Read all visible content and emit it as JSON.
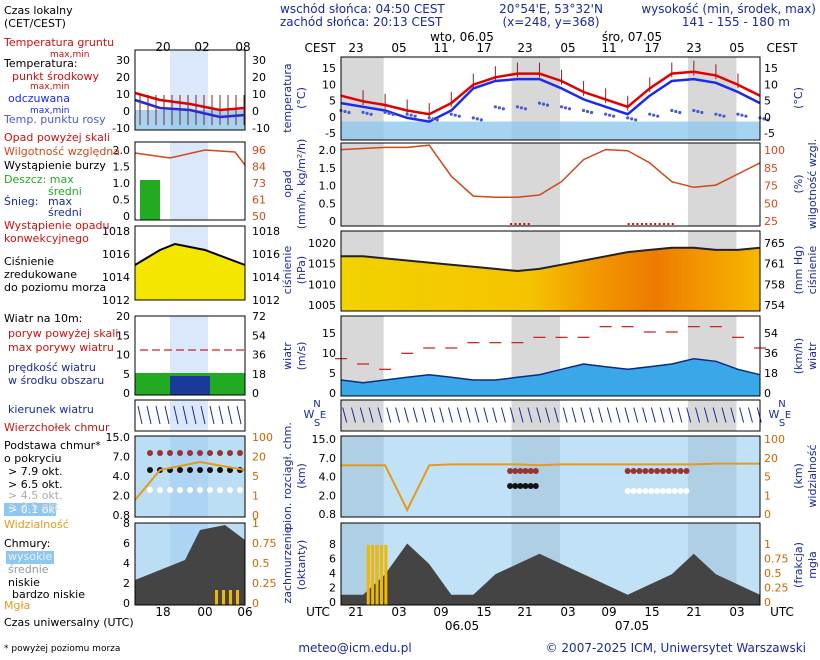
{
  "header": {
    "sunrise": "wschód słońca: 04:50 CEST",
    "sunset": "zachód słońca: 20:13 CEST",
    "coords": "20°54'E, 53°32'N",
    "grid": "(x=248, y=368)",
    "elev_label": "wysokość (min, środek, max)",
    "elev_values": "141 - 155 - 180 m"
  },
  "top_axis": {
    "label": "CEST",
    "ticks": [
      "23",
      "05",
      "11",
      "17",
      "23",
      "05",
      "11",
      "17",
      "23",
      "05"
    ],
    "day1": "wto, 06.05",
    "day2": "śro, 07.05"
  },
  "bottom_axis": {
    "label": "UTC",
    "ticks": [
      "21",
      "03",
      "09",
      "15",
      "21",
      "03",
      "09",
      "15",
      "21",
      "03"
    ],
    "day1": "06.05",
    "day2": "07.05"
  },
  "legend": {
    "local_time": "Czas lokalny",
    "local_time_sub": "(CET/CEST)",
    "mini_top_ticks": [
      "20",
      "02",
      "08"
    ],
    "mini_bottom_ticks": [
      "18",
      "00",
      "06"
    ],
    "utc_label": "Czas uniwersalny (UTC)",
    "footnote": "* powyżej poziomu morza",
    "soil_temp": "Temperatura gruntu",
    "soil_temp_sub": "max,min",
    "temperature": "Temperatura:",
    "center_point": "punkt środkowy",
    "center_sub": "max,min",
    "shaded": "odczuwana",
    "shaded_sub": "max,min",
    "dew_point": "Temp. punktu rosy",
    "precip_above": "Opad powyżej skali",
    "humidity": "Wilgotność względna",
    "storm": "Wystąpienie burzy",
    "rain": "Deszcz: max",
    "rain_avg": "średni",
    "snow": "Śnieg:",
    "snow_max": "max",
    "snow_avg": "średni",
    "conv": "Wystąpienie opadu",
    "conv2": "konwekcyjnego",
    "pressure": "Ciśnienie",
    "pressure2": "zredukowane",
    "pressure3": "do poziomu morza",
    "wind10": "Wiatr na 10m:",
    "gust_above": "poryw powyżej skali",
    "gust_max": "max porywy wiatru",
    "wind_speed": "prędkość wiatru",
    "wind_area": "w środku obszaru",
    "wind_dir": "kierunek wiatru",
    "cb": "Wierzchołek chmur",
    "cloud_base": "Podstawa chmur*",
    "cloud_base2": "o pokryciu",
    "okt1": "> 7.9 okt.",
    "okt2": "> 6.5 okt.",
    "okt3": "> 4.5 okt.",
    "okt4": "> 2.5 okt.",
    "okt5": "> 0.1 okt.",
    "visibility": "Widzialność",
    "clouds": "Chmury:",
    "high": "wysokie",
    "mid": "średnie",
    "low": "niskie",
    "verylow": "bardzo niskie",
    "fog": "Mgła",
    "mini_temp_left": [
      "30",
      "20",
      "10",
      "0",
      "-10"
    ],
    "mini_temp_right": [
      "30",
      "20",
      "10",
      "0",
      "-10"
    ],
    "mini_prec_left": [
      "2.0",
      "1.5",
      "1.0",
      "0.5",
      "0"
    ],
    "mini_prec_right": [
      "96",
      "84",
      "73",
      "61",
      "50"
    ],
    "mini_pres_left": [
      "1018",
      "1016",
      "1014",
      "1012"
    ],
    "mini_pres_right": [
      "1018",
      "1016",
      "1014",
      "1012"
    ],
    "mini_wind_left": [
      "20",
      "15",
      "10",
      "5",
      "0"
    ],
    "mini_wind_right": [
      "72",
      "54",
      "36",
      "18",
      "0"
    ],
    "mini_cb_left": [
      "15.0",
      "7.0",
      "4.0",
      "2.0",
      "0.8"
    ],
    "mini_cb_right": [
      "100",
      "20",
      "5",
      "1",
      "0"
    ],
    "mini_cl_left": [
      "8",
      "6",
      "4",
      "2",
      "0"
    ],
    "mini_cl_right": [
      "1",
      "0.75",
      "0.5",
      "0.25",
      "0"
    ]
  },
  "panel_labels": {
    "temp": "temperatura",
    "temp_unit": "(°C)",
    "temp_right_unit": "(°C)",
    "prec": "opad",
    "prec_unit": "(mm/h, kg/m²/h)",
    "hum": "wilgotność wzgl.",
    "hum_unit": "(%)",
    "pres": "ciśnienie",
    "pres_unit": "(hPa)",
    "pres_right": "ciśnienie",
    "pres_right_unit": "(mm Hg)",
    "wind": "wiatr",
    "wind_unit": "(m/s)",
    "wind_right": "wiatr",
    "wind_right_unit": "(km/h)",
    "dirN": "N",
    "dirW": "W",
    "dirS": "S",
    "dirE": "E",
    "cb": "pion. rozciągł. chm.",
    "cb_unit": "(km)",
    "vis": "widzialność",
    "vis_unit": "(km)",
    "cl": "zachmurzenie",
    "cl_unit": "(oktanty)",
    "fog": "mgła",
    "fog_unit": "(frakcja)"
  },
  "axes": {
    "temp_left": [
      "15",
      "10",
      "5",
      "0",
      "-5"
    ],
    "temp_right": [
      "15",
      "10",
      "5",
      "0",
      "-5"
    ],
    "prec_left": [
      "2.0",
      "1.5",
      "1.0",
      "0.5",
      "0"
    ],
    "prec_right": [
      "100",
      "85",
      "75",
      "50",
      "25"
    ],
    "pres_left": [
      "1020",
      "1015",
      "1010",
      "1005"
    ],
    "pres_right": [
      "765",
      "761",
      "758",
      "754"
    ],
    "wind_left": [
      "15",
      "10",
      "5",
      "0"
    ],
    "wind_right": [
      "54",
      "36",
      "18",
      "0"
    ],
    "cb_left": [
      "15.0",
      "7.0",
      "4.0",
      "2.0",
      "0.8"
    ],
    "cb_right": [
      "100",
      "20",
      "5",
      "1",
      "0"
    ],
    "cl_left": [
      "8",
      "6",
      "4",
      "2",
      "0"
    ],
    "cl_right": [
      "1",
      "0.75",
      "0.5",
      "0.25",
      "0"
    ]
  },
  "footer": {
    "email": "meteo@icm.edu.pl",
    "copyright": "© 2007-2025 ICM, Uniwersytet Warszawski"
  },
  "colors": {
    "temp": "#e00000",
    "feels": "#1a2aee",
    "dew": "#4a5ad0",
    "humidity": "#cc4a1a",
    "pressure": "#222222",
    "wind": "#1a44cc",
    "gust": "#cc1a1a",
    "visibility": "#e49a1a",
    "night": "#d8d8d8"
  },
  "chart_data": [
    {
      "type": "line",
      "name": "temperature",
      "x_hours_cest": [
        21,
        24,
        27,
        30,
        33,
        36,
        39,
        42,
        45,
        48,
        51,
        54,
        57,
        60,
        63,
        66,
        69,
        72,
        75,
        78
      ],
      "series": [
        {
          "name": "punkt środkowy",
          "values": [
            7,
            5.5,
            4.5,
            3,
            2,
            5,
            10,
            12,
            13,
            13,
            11,
            8,
            6,
            4,
            9,
            13,
            13.5,
            12.5,
            10,
            7
          ]
        },
        {
          "name": "odczuwana",
          "values": [
            5,
            4,
            3,
            1,
            0,
            3,
            9,
            11,
            11.5,
            11.5,
            9,
            6,
            4,
            2,
            7,
            11,
            11.5,
            10.5,
            8,
            5
          ]
        },
        {
          "name": "Temp. punktu rosy",
          "values": [
            3,
            2.5,
            2.5,
            2,
            1,
            2,
            1,
            4,
            4,
            5,
            4,
            3,
            2,
            1,
            2,
            3,
            3,
            2,
            2,
            1
          ]
        }
      ],
      "ylim": [
        -5,
        17.5
      ]
    },
    {
      "type": "line",
      "name": "humidity",
      "values": [
        94,
        95,
        96,
        96,
        98,
        70,
        52,
        51,
        51,
        53,
        65,
        85,
        94,
        93,
        82,
        65,
        60,
        62,
        72,
        82
      ],
      "ylim": [
        25,
        100
      ]
    },
    {
      "type": "area",
      "name": "pressure",
      "values": [
        1016,
        1016,
        1015.5,
        1015,
        1014.5,
        1014,
        1013.5,
        1013,
        1012.5,
        1013,
        1014,
        1015,
        1016,
        1017,
        1017.5,
        1018,
        1018,
        1017.5,
        1017.5,
        1018
      ],
      "ylim": [
        1003,
        1022
      ]
    },
    {
      "type": "line",
      "name": "wind",
      "series": [
        {
          "name": "prędkość wiatru",
          "values": [
            3,
            2.5,
            3,
            3.5,
            4,
            3.5,
            3,
            3,
            3.5,
            4,
            5,
            6,
            5.5,
            5,
            5.5,
            6,
            7,
            6.5,
            5,
            4
          ]
        },
        {
          "name": "max porywy wiatru",
          "values": [
            7,
            6,
            5,
            8,
            9,
            9,
            10,
            10,
            10,
            11,
            11,
            11,
            13,
            13,
            12,
            12,
            13,
            13,
            11,
            9
          ]
        }
      ],
      "ylim": [
        0,
        15
      ]
    },
    {
      "type": "line",
      "name": "visibility",
      "values": [
        18,
        18,
        18,
        0.5,
        18,
        19,
        19,
        19,
        19,
        18,
        19,
        19,
        19,
        19,
        19,
        19,
        19,
        20,
        20,
        20
      ]
    },
    {
      "type": "area",
      "name": "clouds",
      "values": [
        1,
        1,
        3,
        6,
        4,
        1,
        1,
        3,
        4,
        5,
        4,
        3,
        2,
        1,
        2,
        3,
        5,
        3,
        2,
        1
      ],
      "ylim": [
        0,
        8
      ]
    }
  ]
}
